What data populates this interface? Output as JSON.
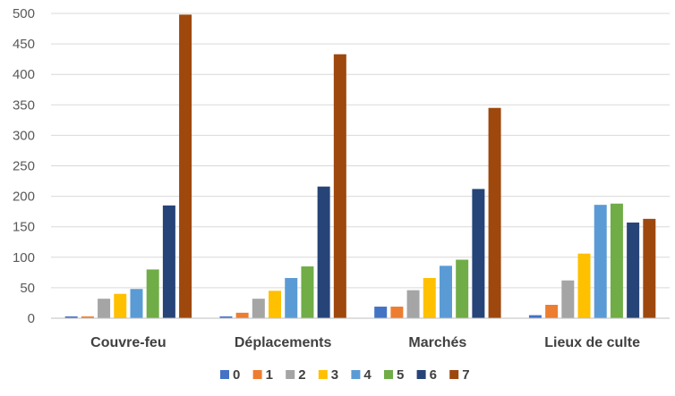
{
  "chart_data": {
    "type": "bar",
    "title": "",
    "xlabel": "",
    "ylabel": "",
    "categories": [
      "Couvre-feu",
      "Déplacements",
      "Marchés",
      "Lieux de culte"
    ],
    "ylim": [
      0,
      500
    ],
    "yticks": [
      0,
      50,
      100,
      150,
      200,
      250,
      300,
      350,
      400,
      450,
      500
    ],
    "grid": true,
    "legend": "bottom",
    "series": [
      {
        "name": "0",
        "color": "#4472c4",
        "values": [
          3,
          3,
          19,
          5
        ]
      },
      {
        "name": "1",
        "color": "#ed7d31",
        "values": [
          3,
          9,
          19,
          22
        ]
      },
      {
        "name": "2",
        "color": "#a5a5a5",
        "values": [
          32,
          32,
          46,
          62
        ]
      },
      {
        "name": "3",
        "color": "#ffc000",
        "values": [
          40,
          45,
          66,
          106
        ]
      },
      {
        "name": "4",
        "color": "#5b9bd5",
        "values": [
          48,
          66,
          86,
          186
        ]
      },
      {
        "name": "5",
        "color": "#70ad47",
        "values": [
          80,
          85,
          96,
          188
        ]
      },
      {
        "name": "6",
        "color": "#264478",
        "values": [
          185,
          216,
          212,
          157
        ]
      },
      {
        "name": "7",
        "color": "#9e480e",
        "values": [
          498,
          433,
          345,
          163
        ]
      }
    ]
  }
}
